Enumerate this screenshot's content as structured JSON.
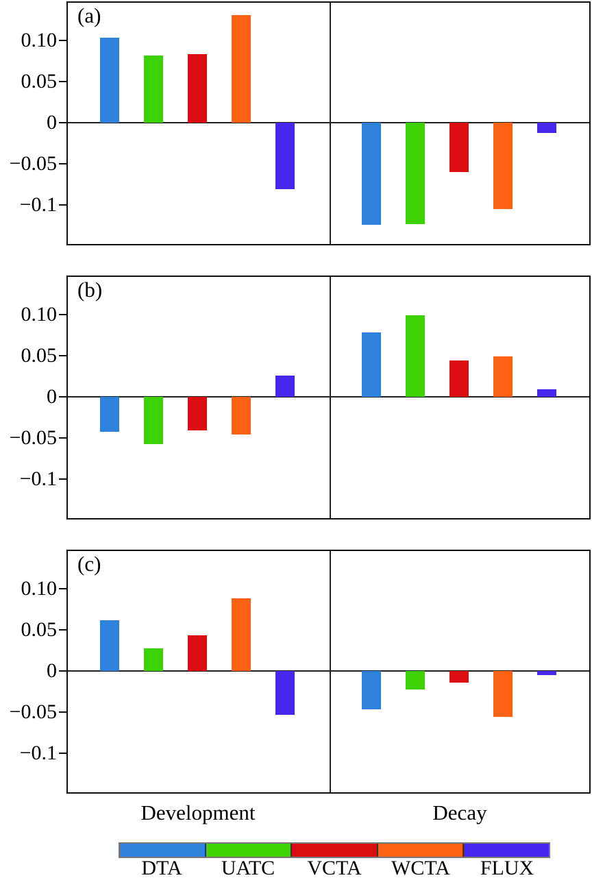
{
  "chart_data": [
    {
      "type": "bar",
      "panel_label": "(a)",
      "categories": [
        "Development",
        "Decay"
      ],
      "series": [
        {
          "name": "DTA",
          "color": "#2E82DC",
          "values": [
            0.103,
            -0.125
          ]
        },
        {
          "name": "UATC",
          "color": "#3CD203",
          "values": [
            0.082,
            -0.124
          ]
        },
        {
          "name": "VCTA",
          "color": "#DC0D10",
          "values": [
            0.083,
            -0.06
          ]
        },
        {
          "name": "WCTA",
          "color": "#FD6114",
          "values": [
            0.131,
            -0.105
          ]
        },
        {
          "name": "FLUX",
          "color": "#4527EE",
          "values": [
            -0.081,
            -0.013
          ]
        }
      ],
      "ylim": [
        -0.148,
        0.146
      ],
      "grid": false,
      "legend_position": "none"
    },
    {
      "type": "bar",
      "panel_label": "(b)",
      "categories": [
        "Development",
        "Decay"
      ],
      "series": [
        {
          "name": "DTA",
          "color": "#2E82DC",
          "values": [
            -0.043,
            0.078
          ]
        },
        {
          "name": "UATC",
          "color": "#3CD203",
          "values": [
            -0.058,
            0.099
          ]
        },
        {
          "name": "VCTA",
          "color": "#DC0D10",
          "values": [
            -0.041,
            0.044
          ]
        },
        {
          "name": "WCTA",
          "color": "#FD6114",
          "values": [
            -0.046,
            0.049
          ]
        },
        {
          "name": "FLUX",
          "color": "#4527EE",
          "values": [
            0.026,
            0.009
          ]
        }
      ],
      "ylim": [
        -0.148,
        0.146
      ],
      "grid": false,
      "legend_position": "none"
    },
    {
      "type": "bar",
      "panel_label": "(c)",
      "categories": [
        "Development",
        "Decay"
      ],
      "series": [
        {
          "name": "DTA",
          "color": "#2E82DC",
          "values": [
            0.062,
            -0.047
          ]
        },
        {
          "name": "UATC",
          "color": "#3CD203",
          "values": [
            0.027,
            -0.023
          ]
        },
        {
          "name": "VCTA",
          "color": "#DC0D10",
          "values": [
            0.043,
            -0.014
          ]
        },
        {
          "name": "WCTA",
          "color": "#FD6114",
          "values": [
            0.088,
            -0.056
          ]
        },
        {
          "name": "FLUX",
          "color": "#4527EE",
          "values": [
            -0.054,
            -0.005
          ]
        }
      ],
      "ylim": [
        -0.148,
        0.146
      ],
      "grid": false,
      "legend_position": "none"
    }
  ],
  "axis": {
    "yticks": [
      {
        "value": 0.1,
        "label": "0.10"
      },
      {
        "value": 0.05,
        "label": "0.05"
      },
      {
        "value": 0,
        "label": "0"
      },
      {
        "value": -0.05,
        "label": "−0.05"
      },
      {
        "value": -0.1,
        "label": "−0.1"
      }
    ],
    "group_labels": [
      "Development",
      "Decay"
    ]
  },
  "legend": {
    "entries": [
      {
        "label": "DTA",
        "color": "#2E82DC"
      },
      {
        "label": "UATC",
        "color": "#3CD203"
      },
      {
        "label": "VCTA",
        "color": "#DC0D10"
      },
      {
        "label": "WCTA",
        "color": "#FD6114"
      },
      {
        "label": "FLUX",
        "color": "#4527EE"
      }
    ]
  }
}
